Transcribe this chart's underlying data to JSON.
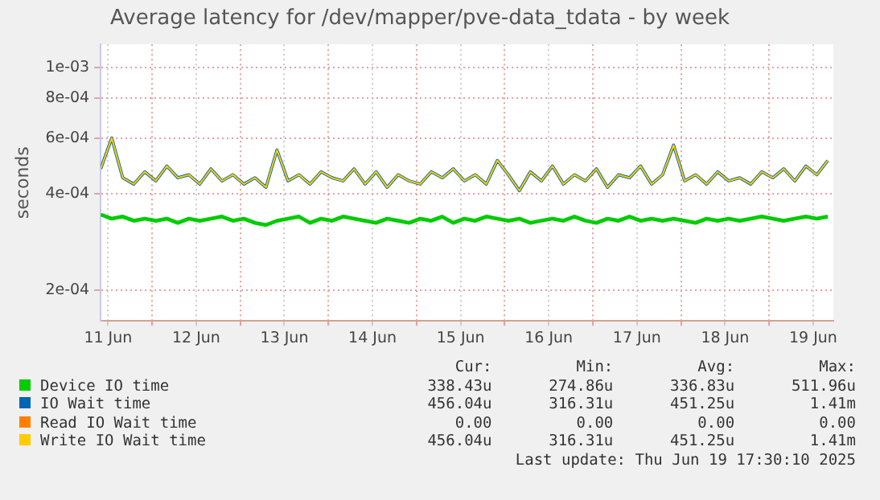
{
  "chart_data": {
    "type": "line",
    "title": "Average latency for /dev/mapper/pve-data_tdata - by week",
    "ylabel": "seconds",
    "log": "y",
    "grid": true,
    "legend": "bottom",
    "marker": "none",
    "line_style": "solid",
    "ylim": [
      0.00016,
      0.00118
    ],
    "yticks": [
      {
        "value": 0.0002,
        "label": "2e-04"
      },
      {
        "value": 0.0004,
        "label": "4e-04"
      },
      {
        "value": 0.0006,
        "label": "6e-04"
      },
      {
        "value": 0.0008,
        "label": "8e-04"
      },
      {
        "value": 0.001,
        "label": "1e-03"
      }
    ],
    "xlim": [
      "2025-06-11T10:00",
      "2025-06-19T17:30"
    ],
    "xticks": [
      {
        "value": "2025-06-11T12:00",
        "label": "11 Jun"
      },
      {
        "value": "2025-06-12T00:00",
        "label": null
      },
      {
        "value": "2025-06-12T12:00",
        "label": "12 Jun"
      },
      {
        "value": "2025-06-13T00:00",
        "label": null
      },
      {
        "value": "2025-06-13T12:00",
        "label": "13 Jun"
      },
      {
        "value": "2025-06-14T00:00",
        "label": null
      },
      {
        "value": "2025-06-14T12:00",
        "label": "14 Jun"
      },
      {
        "value": "2025-06-15T00:00",
        "label": null
      },
      {
        "value": "2025-06-15T12:00",
        "label": "15 Jun"
      },
      {
        "value": "2025-06-16T00:00",
        "label": null
      },
      {
        "value": "2025-06-16T12:00",
        "label": "16 Jun"
      },
      {
        "value": "2025-06-17T00:00",
        "label": null
      },
      {
        "value": "2025-06-17T12:00",
        "label": "17 Jun"
      },
      {
        "value": "2025-06-18T00:00",
        "label": null
      },
      {
        "value": "2025-06-18T12:00",
        "label": "18 Jun"
      },
      {
        "value": "2025-06-19T00:00",
        "label": null
      },
      {
        "value": "2025-06-19T12:00",
        "label": "19 Jun"
      }
    ],
    "x": [
      "2025-06-11T10:00",
      "2025-06-11T13:00",
      "2025-06-11T16:00",
      "2025-06-11T19:00",
      "2025-06-11T22:00",
      "2025-06-12T01:00",
      "2025-06-12T04:00",
      "2025-06-12T07:00",
      "2025-06-12T10:00",
      "2025-06-12T13:00",
      "2025-06-12T16:00",
      "2025-06-12T19:00",
      "2025-06-12T22:00",
      "2025-06-13T01:00",
      "2025-06-13T04:00",
      "2025-06-13T07:00",
      "2025-06-13T10:00",
      "2025-06-13T13:00",
      "2025-06-13T16:00",
      "2025-06-13T19:00",
      "2025-06-13T22:00",
      "2025-06-14T01:00",
      "2025-06-14T04:00",
      "2025-06-14T07:00",
      "2025-06-14T10:00",
      "2025-06-14T13:00",
      "2025-06-14T16:00",
      "2025-06-14T19:00",
      "2025-06-14T22:00",
      "2025-06-15T01:00",
      "2025-06-15T04:00",
      "2025-06-15T07:00",
      "2025-06-15T10:00",
      "2025-06-15T13:00",
      "2025-06-15T16:00",
      "2025-06-15T19:00",
      "2025-06-15T22:00",
      "2025-06-16T01:00",
      "2025-06-16T04:00",
      "2025-06-16T07:00",
      "2025-06-16T10:00",
      "2025-06-16T13:00",
      "2025-06-16T16:00",
      "2025-06-16T19:00",
      "2025-06-16T22:00",
      "2025-06-17T01:00",
      "2025-06-17T04:00",
      "2025-06-17T07:00",
      "2025-06-17T10:00",
      "2025-06-17T13:00",
      "2025-06-17T16:00",
      "2025-06-17T19:00",
      "2025-06-17T22:00",
      "2025-06-18T01:00",
      "2025-06-18T04:00",
      "2025-06-18T07:00",
      "2025-06-18T10:00",
      "2025-06-18T13:00",
      "2025-06-18T16:00",
      "2025-06-18T19:00",
      "2025-06-18T22:00",
      "2025-06-19T01:00",
      "2025-06-19T04:00",
      "2025-06-19T07:00",
      "2025-06-19T10:00",
      "2025-06-19T13:00",
      "2025-06-19T16:00"
    ],
    "series": [
      {
        "name": "Device IO time",
        "color": "#00cc00",
        "values": [
          0.000345,
          0.000335,
          0.00034,
          0.00033,
          0.000335,
          0.00033,
          0.000335,
          0.000325,
          0.000335,
          0.00033,
          0.000335,
          0.00034,
          0.00033,
          0.000335,
          0.000325,
          0.00032,
          0.00033,
          0.000335,
          0.00034,
          0.000325,
          0.000335,
          0.00033,
          0.00034,
          0.000335,
          0.00033,
          0.000325,
          0.000335,
          0.00033,
          0.000325,
          0.000335,
          0.00033,
          0.00034,
          0.000325,
          0.000335,
          0.00033,
          0.00034,
          0.000335,
          0.00033,
          0.000335,
          0.000325,
          0.00033,
          0.000335,
          0.00033,
          0.00034,
          0.00033,
          0.000325,
          0.000335,
          0.00033,
          0.00034,
          0.00033,
          0.000335,
          0.00033,
          0.000335,
          0.00033,
          0.000325,
          0.000335,
          0.00033,
          0.000335,
          0.00033,
          0.000335,
          0.00034,
          0.000335,
          0.00033,
          0.000335,
          0.00034,
          0.000335,
          0.00034
        ]
      },
      {
        "name": "IO Wait time",
        "color": "#0066b3",
        "values": [
          0.00048,
          0.0006,
          0.00045,
          0.00043,
          0.00047,
          0.00044,
          0.00049,
          0.00045,
          0.00046,
          0.00043,
          0.00048,
          0.00044,
          0.00046,
          0.00043,
          0.00045,
          0.00042,
          0.00055,
          0.00044,
          0.00046,
          0.00043,
          0.00047,
          0.00045,
          0.00044,
          0.00048,
          0.00043,
          0.00047,
          0.00042,
          0.00046,
          0.00044,
          0.00043,
          0.00047,
          0.00045,
          0.00048,
          0.00044,
          0.00046,
          0.00043,
          0.00051,
          0.00046,
          0.00041,
          0.00047,
          0.00044,
          0.00049,
          0.00043,
          0.00046,
          0.00044,
          0.00048,
          0.00042,
          0.00046,
          0.00045,
          0.00049,
          0.00043,
          0.00046,
          0.00057,
          0.00044,
          0.00046,
          0.00043,
          0.00047,
          0.00044,
          0.00045,
          0.00043,
          0.00047,
          0.00045,
          0.00048,
          0.00044,
          0.00049,
          0.00046,
          0.00051
        ]
      },
      {
        "name": "Read IO Wait time",
        "color": "#ff8000",
        "values": [
          null,
          null,
          null,
          null,
          null,
          null,
          null,
          null,
          null,
          null,
          null,
          null,
          null,
          null,
          null,
          null,
          null,
          null,
          null,
          null,
          null,
          null,
          null,
          null,
          null,
          null,
          null,
          null,
          null,
          null,
          null,
          null,
          null,
          null,
          null,
          null,
          null,
          null,
          null,
          null,
          null,
          null,
          null,
          null,
          null,
          null,
          null,
          null,
          null,
          null,
          null,
          null,
          null,
          null,
          null,
          null,
          null,
          null,
          null,
          null,
          null,
          null,
          null,
          null,
          null,
          null,
          null
        ]
      },
      {
        "name": "Write IO Wait time",
        "color": "#ffcc00",
        "values": [
          0.00048,
          0.0006,
          0.00045,
          0.00043,
          0.00047,
          0.00044,
          0.00049,
          0.00045,
          0.00046,
          0.00043,
          0.00048,
          0.00044,
          0.00046,
          0.00043,
          0.00045,
          0.00042,
          0.00055,
          0.00044,
          0.00046,
          0.00043,
          0.00047,
          0.00045,
          0.00044,
          0.00048,
          0.00043,
          0.00047,
          0.00042,
          0.00046,
          0.00044,
          0.00043,
          0.00047,
          0.00045,
          0.00048,
          0.00044,
          0.00046,
          0.00043,
          0.00051,
          0.00046,
          0.00041,
          0.00047,
          0.00044,
          0.00049,
          0.00043,
          0.00046,
          0.00044,
          0.00048,
          0.00042,
          0.00046,
          0.00045,
          0.00049,
          0.00043,
          0.00046,
          0.00057,
          0.00044,
          0.00046,
          0.00043,
          0.00047,
          0.00044,
          0.00045,
          0.00043,
          0.00047,
          0.00045,
          0.00048,
          0.00044,
          0.00049,
          0.00046,
          0.00051
        ]
      }
    ],
    "annotations": [
      "Cur:",
      "Min:",
      "Avg:",
      "Max:",
      "338.43u",
      "274.86u",
      "336.83u",
      "511.96u",
      "456.04u",
      "316.31u",
      "451.25u",
      "1.41m",
      "0.00",
      "0.00",
      "0.00",
      "0.00",
      "456.04u",
      "316.31u",
      "451.25u",
      "1.41m",
      "Last update: Thu Jun 19 17:30:10 2025"
    ]
  }
}
